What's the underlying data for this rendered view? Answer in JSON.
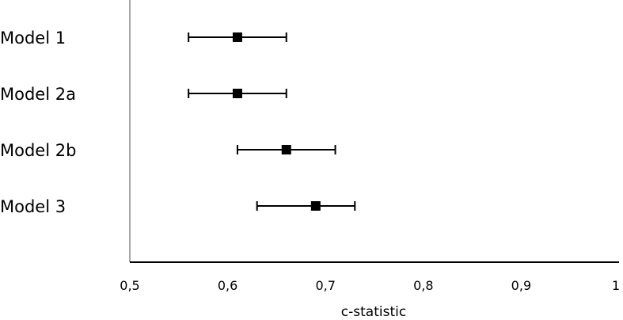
{
  "chart_data": {
    "type": "forest",
    "title": "",
    "xlabel": "c-statistic",
    "ylabel": "",
    "xlim": [
      0.5,
      1.0
    ],
    "x_ticks": [
      "0,5",
      "0,6",
      "0,7",
      "0,8",
      "0,9",
      "1"
    ],
    "x_tick_values": [
      0.5,
      0.6,
      0.7,
      0.8,
      0.9,
      1.0
    ],
    "grid": false,
    "legend": "none",
    "marker": "square",
    "marker_color": "#000000",
    "rows": [
      {
        "label": "Model 1",
        "estimate": 0.61,
        "lower": 0.56,
        "upper": 0.66
      },
      {
        "label": "Model 2a",
        "estimate": 0.61,
        "lower": 0.56,
        "upper": 0.66
      },
      {
        "label": "Model 2b",
        "estimate": 0.66,
        "lower": 0.61,
        "upper": 0.71
      },
      {
        "label": "Model 3",
        "estimate": 0.69,
        "lower": 0.63,
        "upper": 0.73
      }
    ]
  }
}
